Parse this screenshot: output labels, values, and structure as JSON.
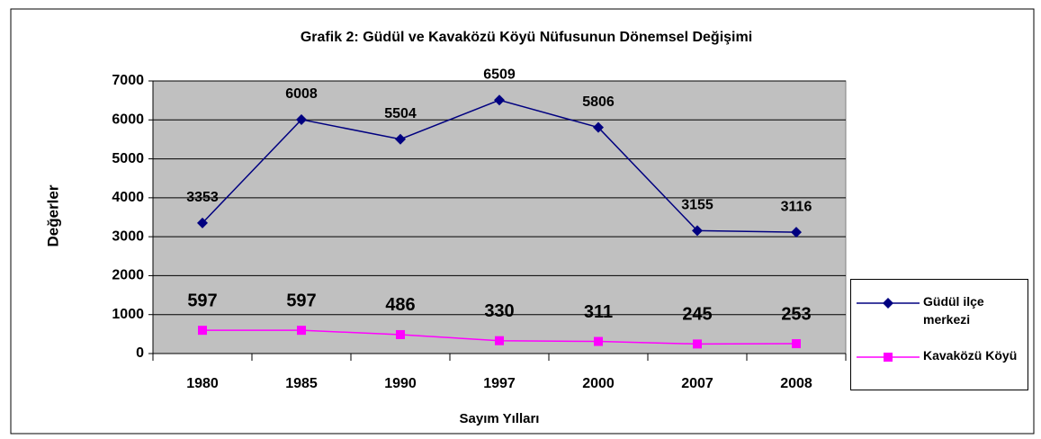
{
  "chart_data": {
    "type": "line",
    "title": "Grafik 2: Güdül ve Kavaközü Köyü Nüfusunun Dönemsel Değişimi",
    "x_label": "Sayım Yılları",
    "y_label": "Değerler",
    "categories": [
      "1980",
      "1985",
      "1990",
      "1997",
      "2000",
      "2007",
      "2008"
    ],
    "series": [
      {
        "name": "Güdül ilçe merkezi",
        "color": "#000080",
        "values": [
          3353,
          6008,
          5504,
          6509,
          5806,
          3155,
          3116
        ]
      },
      {
        "name": "Kavaközü Köyü",
        "color": "#ff00ff",
        "values": [
          597,
          597,
          486,
          330,
          311,
          245,
          253
        ]
      }
    ],
    "ylim": [
      0,
      7000
    ],
    "yticks": [
      0,
      1000,
      2000,
      3000,
      4000,
      5000,
      6000,
      7000
    ],
    "grid": true,
    "legend": "right"
  }
}
